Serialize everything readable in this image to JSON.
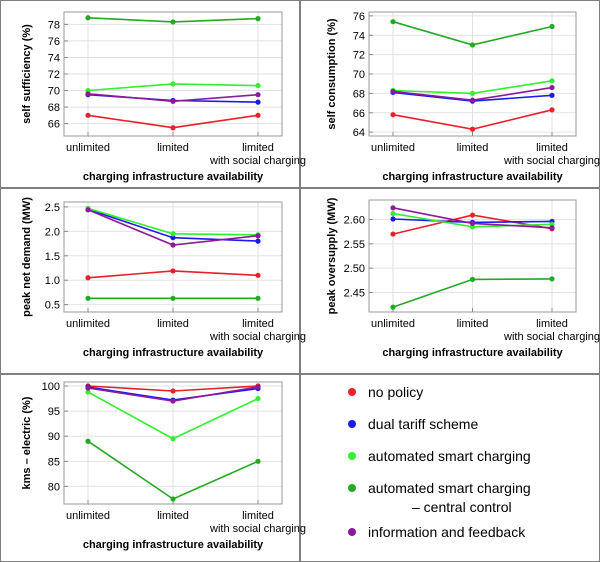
{
  "figure": {
    "legend": [
      {
        "key": "no_policy",
        "lines": [
          "no policy"
        ],
        "color": "#e8202a"
      },
      {
        "key": "dual_tariff",
        "lines": [
          "dual tariff scheme"
        ],
        "color": "#1a1aee"
      },
      {
        "key": "auto_smart",
        "lines": [
          "automated smart charging"
        ],
        "color": "#33ee33"
      },
      {
        "key": "auto_central",
        "lines": [
          "automated smart charging",
          "– central control"
        ],
        "color": "#22aa22"
      },
      {
        "key": "info_feedback",
        "lines": [
          "information and feedback"
        ],
        "color": "#8b1a9a"
      }
    ]
  },
  "chart_data": [
    {
      "type": "line",
      "categories": [
        "unlimited",
        "limited",
        "limited"
      ],
      "category_sublabels": [
        "",
        "",
        "with social charging"
      ],
      "xlabel": "charging infrastructure availability",
      "ylabel": "self sufficiency (%)",
      "ylim": [
        64.5,
        79.5
      ],
      "yticks": [
        66,
        68,
        70,
        72,
        74,
        76,
        78
      ],
      "grid": true,
      "series": [
        {
          "key": "no_policy",
          "color": "#e8202a",
          "values": [
            67.0,
            65.5,
            67.0
          ]
        },
        {
          "key": "dual_tariff",
          "color": "#1a1aee",
          "values": [
            69.5,
            68.8,
            68.6
          ]
        },
        {
          "key": "auto_smart",
          "color": "#33ee33",
          "values": [
            70.0,
            70.8,
            70.6
          ]
        },
        {
          "key": "auto_central",
          "color": "#22aa22",
          "values": [
            78.8,
            78.3,
            78.7
          ]
        },
        {
          "key": "info_feedback",
          "color": "#8b1a9a",
          "values": [
            69.6,
            68.7,
            69.5
          ]
        }
      ]
    },
    {
      "type": "line",
      "categories": [
        "unlimited",
        "limited",
        "limited"
      ],
      "category_sublabels": [
        "",
        "",
        "with social charging"
      ],
      "xlabel": "charging infrastructure availability",
      "ylabel": "self consumption (%)",
      "ylim": [
        63.6,
        76.4
      ],
      "yticks": [
        64,
        66,
        68,
        70,
        72,
        74,
        76
      ],
      "grid": true,
      "series": [
        {
          "key": "no_policy",
          "color": "#e8202a",
          "values": [
            65.8,
            64.3,
            66.3
          ]
        },
        {
          "key": "dual_tariff",
          "color": "#1a1aee",
          "values": [
            68.1,
            67.2,
            67.8
          ]
        },
        {
          "key": "auto_smart",
          "color": "#33ee33",
          "values": [
            68.3,
            68.0,
            69.3
          ]
        },
        {
          "key": "auto_central",
          "color": "#22aa22",
          "values": [
            75.4,
            73.0,
            74.9
          ]
        },
        {
          "key": "info_feedback",
          "color": "#8b1a9a",
          "values": [
            68.2,
            67.3,
            68.6
          ]
        }
      ]
    },
    {
      "type": "line",
      "categories": [
        "unlimited",
        "limited",
        "limited"
      ],
      "category_sublabels": [
        "",
        "",
        "with social charging"
      ],
      "xlabel": "charging infrastructure availability",
      "ylabel": "peak net demand (MW)",
      "ylim": [
        0.35,
        2.6
      ],
      "yticks": [
        0.5,
        1.0,
        1.5,
        2.0,
        2.5
      ],
      "ytick_labels": [
        "0.5",
        "1.0",
        "1.5",
        "2.0",
        "2.5"
      ],
      "grid": true,
      "series": [
        {
          "key": "no_policy",
          "color": "#e8202a",
          "values": [
            1.05,
            1.19,
            1.1
          ]
        },
        {
          "key": "dual_tariff",
          "color": "#1a1aee",
          "values": [
            2.45,
            1.87,
            1.8
          ]
        },
        {
          "key": "auto_smart",
          "color": "#33ee33",
          "values": [
            2.47,
            1.95,
            1.93
          ]
        },
        {
          "key": "auto_central",
          "color": "#22aa22",
          "values": [
            0.63,
            0.63,
            0.63
          ]
        },
        {
          "key": "info_feedback",
          "color": "#8b1a9a",
          "values": [
            2.44,
            1.72,
            1.91
          ]
        }
      ]
    },
    {
      "type": "line",
      "categories": [
        "unlimited",
        "limited",
        "limited"
      ],
      "category_sublabels": [
        "",
        "",
        "with social charging"
      ],
      "xlabel": "charging infrastructure availability",
      "ylabel": "peak oversupply (MW)",
      "ylim": [
        2.41,
        2.64
      ],
      "yticks": [
        2.45,
        2.5,
        2.55,
        2.6
      ],
      "ytick_labels": [
        "2.45",
        "2.50",
        "2.55",
        "2.60"
      ],
      "grid": true,
      "series": [
        {
          "key": "no_policy",
          "color": "#e8202a",
          "values": [
            2.57,
            2.609,
            2.581
          ]
        },
        {
          "key": "dual_tariff",
          "color": "#1a1aee",
          "values": [
            2.601,
            2.594,
            2.596
          ]
        },
        {
          "key": "auto_smart",
          "color": "#33ee33",
          "values": [
            2.612,
            2.585,
            2.59
          ]
        },
        {
          "key": "auto_central",
          "color": "#22aa22",
          "values": [
            2.42,
            2.477,
            2.478
          ]
        },
        {
          "key": "info_feedback",
          "color": "#8b1a9a",
          "values": [
            2.624,
            2.592,
            2.583
          ]
        }
      ]
    },
    {
      "type": "line",
      "categories": [
        "unlimited",
        "limited",
        "limited"
      ],
      "category_sublabels": [
        "",
        "",
        "with social charging"
      ],
      "xlabel": "charging infrastructure availability",
      "ylabel": "kms – electric (%)",
      "ylim": [
        76.5,
        100.8
      ],
      "yticks": [
        80,
        85,
        90,
        95,
        100
      ],
      "grid": true,
      "series": [
        {
          "key": "no_policy",
          "color": "#e8202a",
          "values": [
            100.0,
            99.0,
            100.0
          ]
        },
        {
          "key": "dual_tariff",
          "color": "#1a1aee",
          "values": [
            99.8,
            97.2,
            99.5
          ]
        },
        {
          "key": "auto_smart",
          "color": "#33ee33",
          "values": [
            98.8,
            89.5,
            97.5
          ]
        },
        {
          "key": "auto_central",
          "color": "#22aa22",
          "values": [
            89.0,
            77.5,
            85.0
          ]
        },
        {
          "key": "info_feedback",
          "color": "#8b1a9a",
          "values": [
            99.6,
            97.0,
            99.8
          ]
        }
      ]
    }
  ]
}
